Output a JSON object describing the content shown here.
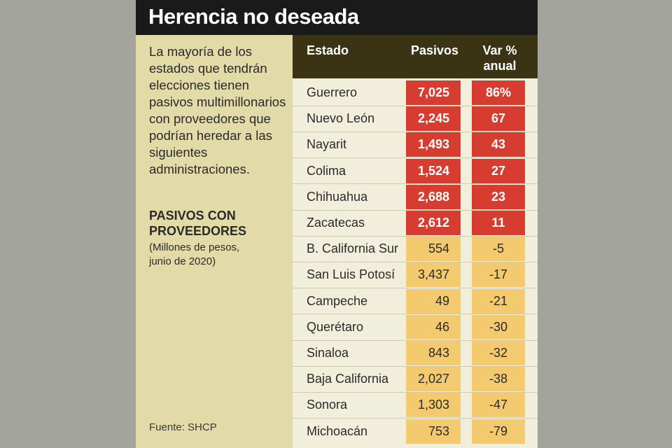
{
  "title": "Herencia no deseada",
  "intro": "La mayoría de los estados que tendrán elecciones tienen pasivos multimillonarios con proveedores que podrían heredar a las siguientes administraciones.",
  "subtitle_lines": [
    "PASIVOS CON",
    "PROVEEDORES"
  ],
  "units_lines": [
    "(Millones de pesos,",
    "junio de 2020)"
  ],
  "source": "Fuente: SHCP",
  "colors": {
    "hot": "#d63c2f",
    "warm": "#f3ca6e",
    "header": "#3a3414",
    "title_bar": "#1a1a1a"
  },
  "chart_data": {
    "type": "table",
    "columns": [
      "Estado",
      "Pasivos",
      "Var %\nanual"
    ],
    "rows": [
      {
        "state": "Guerrero",
        "liabilities": "7,025",
        "change": "86%"
      },
      {
        "state": "Nuevo León",
        "liabilities": "2,245",
        "change": "67"
      },
      {
        "state": "Nayarit",
        "liabilities": "1,493",
        "change": "43"
      },
      {
        "state": "Colima",
        "liabilities": "1,524",
        "change": "27"
      },
      {
        "state": "Chihuahua",
        "liabilities": "2,688",
        "change": "23"
      },
      {
        "state": "Zacatecas",
        "liabilities": "2,612",
        "change": "11"
      },
      {
        "state": "B. California Sur",
        "liabilities": "554",
        "change": "-5"
      },
      {
        "state": "San Luis Potosí",
        "liabilities": "3,437",
        "change": "-17"
      },
      {
        "state": "Campeche",
        "liabilities": "49",
        "change": "-21"
      },
      {
        "state": "Querétaro",
        "liabilities": "46",
        "change": "-30"
      },
      {
        "state": "Sinaloa",
        "liabilities": "843",
        "change": "-32"
      },
      {
        "state": "Baja California",
        "liabilities": "2,027",
        "change": "-38"
      },
      {
        "state": "Sonora",
        "liabilities": "1,303",
        "change": "-47"
      },
      {
        "state": "Michoacán",
        "liabilities": "753",
        "change": "-79"
      }
    ]
  }
}
